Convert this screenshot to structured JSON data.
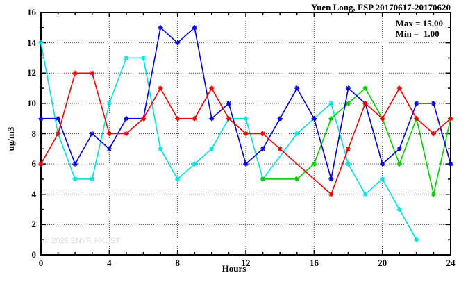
{
  "title": "Yuen Long, FSP 20170617-20170620",
  "legend": {
    "max_label": "Max = 15.00",
    "min_label": "Min =  1.00"
  },
  "watermark": "© 2026 ENVF, HKUST",
  "chart_data": {
    "type": "line",
    "title": "Yuen Long, FSP 20170617-20170620",
    "xlabel": "Hours",
    "ylabel": "ug/m3",
    "xlim": [
      0,
      24
    ],
    "ylim": [
      0,
      16
    ],
    "x_major_ticks": [
      0,
      4,
      8,
      12,
      16,
      20,
      24
    ],
    "y_major_ticks": [
      0,
      2,
      4,
      6,
      8,
      10,
      12,
      14,
      16
    ],
    "x_minor_step": 1,
    "y_minor_step": 1,
    "grid": true,
    "legend_position": "top-right",
    "annotations": [
      "Max = 15.00",
      "Min =  1.00"
    ],
    "x": [
      0,
      1,
      2,
      3,
      4,
      5,
      6,
      7,
      8,
      9,
      10,
      11,
      12,
      13,
      14,
      15,
      16,
      17,
      18,
      19,
      20,
      21,
      22,
      23,
      24
    ],
    "series": [
      {
        "name": "cyan-line",
        "color": "#00e0e0",
        "values": [
          14,
          8,
          5,
          5,
          10,
          13,
          13,
          7,
          5,
          6,
          7,
          9,
          9,
          5,
          null,
          8,
          9,
          10,
          6,
          4,
          5,
          3,
          1
        ]
      },
      {
        "name": "green-line",
        "color": "#00cc00",
        "values": [
          null,
          null,
          null,
          null,
          null,
          null,
          null,
          null,
          null,
          null,
          null,
          null,
          null,
          5,
          null,
          5,
          6,
          9,
          10,
          11,
          9,
          6,
          9,
          4,
          9
        ]
      },
      {
        "name": "blue-line",
        "color": "#0000dd",
        "values": [
          9,
          9,
          6,
          8,
          7,
          9,
          9,
          15,
          14,
          15,
          9,
          10,
          6,
          7,
          9,
          11,
          9,
          5,
          11,
          10,
          6,
          7,
          10,
          10,
          6
        ]
      },
      {
        "name": "red-line",
        "color": "#ee0000",
        "values": [
          6,
          8,
          12,
          12,
          8,
          8,
          9,
          11,
          9,
          9,
          11,
          9,
          8,
          8,
          7,
          null,
          null,
          4,
          7,
          10,
          9,
          11,
          9,
          8,
          9
        ]
      }
    ]
  }
}
